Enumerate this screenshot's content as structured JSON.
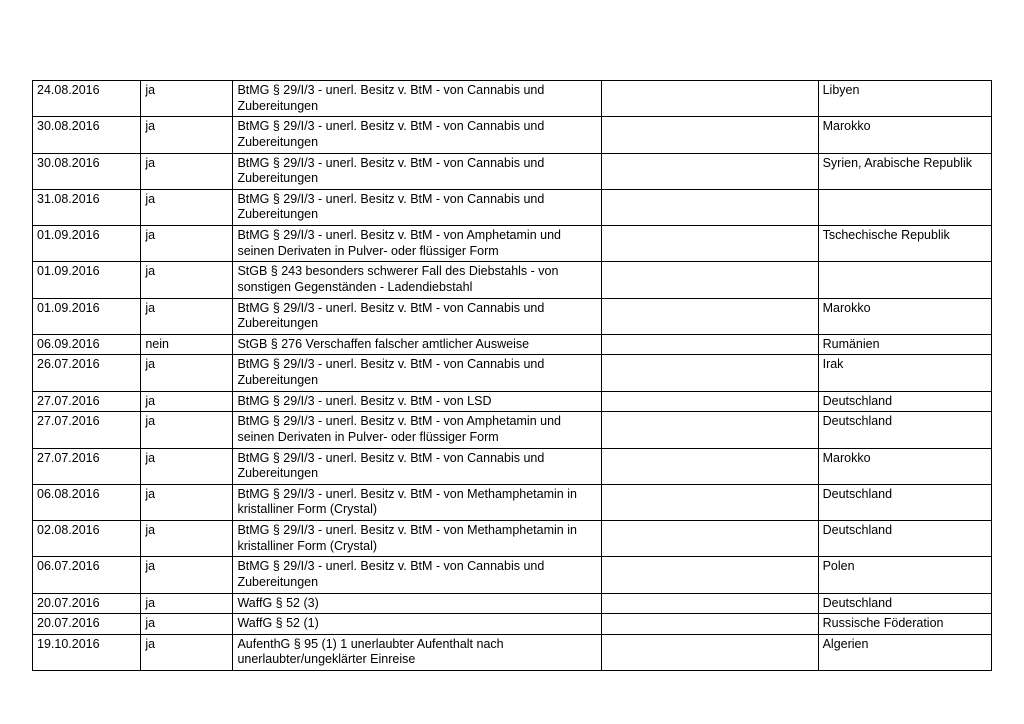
{
  "table": {
    "columns": [
      "date",
      "yesno",
      "law",
      "blank",
      "country"
    ],
    "rows": [
      {
        "date": "24.08.2016",
        "yesno": "ja",
        "law": "BtMG § 29/I/3 - unerl. Besitz v. BtM - von Cannabis und Zubereitungen",
        "blank": "",
        "country": "Libyen"
      },
      {
        "date": "30.08.2016",
        "yesno": "ja",
        "law": "BtMG § 29/I/3 - unerl. Besitz v. BtM - von Cannabis und Zubereitungen",
        "blank": "",
        "country": "Marokko"
      },
      {
        "date": "30.08.2016",
        "yesno": "ja",
        "law": "BtMG § 29/I/3 - unerl. Besitz v. BtM - von Cannabis und Zubereitungen",
        "blank": "",
        "country": "Syrien, Arabische Republik"
      },
      {
        "date": "31.08.2016",
        "yesno": "ja",
        "law": "BtMG § 29/I/3 - unerl. Besitz v. BtM - von Cannabis und Zubereitungen",
        "blank": "",
        "country": ""
      },
      {
        "date": "01.09.2016",
        "yesno": "ja",
        "law": "BtMG § 29/I/3 - unerl. Besitz v. BtM - von Amphetamin und seinen Derivaten in Pulver- oder flüssiger Form",
        "blank": "",
        "country": "Tschechische Republik"
      },
      {
        "date": "01.09.2016",
        "yesno": "ja",
        "law": "StGB § 243 besonders schwerer Fall des Diebstahls - von sonstigen Gegenständen - Ladendiebstahl",
        "blank": "",
        "country": ""
      },
      {
        "date": "01.09.2016",
        "yesno": "ja",
        "law": "BtMG § 29/I/3 - unerl. Besitz v. BtM - von Cannabis und Zubereitungen",
        "blank": "",
        "country": "Marokko"
      },
      {
        "date": "06.09.2016",
        "yesno": "nein",
        "law": "StGB § 276 Verschaffen falscher amtlicher Ausweise",
        "blank": "",
        "country": "Rumänien"
      },
      {
        "date": "26.07.2016",
        "yesno": "ja",
        "law": "BtMG § 29/I/3 - unerl. Besitz v. BtM - von Cannabis und Zubereitungen",
        "blank": "",
        "country": "Irak"
      },
      {
        "date": "27.07.2016",
        "yesno": "ja",
        "law": "BtMG § 29/I/3 - unerl. Besitz v. BtM - von LSD",
        "blank": "",
        "country": "Deutschland"
      },
      {
        "date": "27.07.2016",
        "yesno": "ja",
        "law": "BtMG § 29/I/3 - unerl. Besitz v. BtM - von Amphetamin und seinen Derivaten in Pulver- oder flüssiger Form",
        "blank": "",
        "country": "Deutschland"
      },
      {
        "date": "27.07.2016",
        "yesno": "ja",
        "law": "BtMG § 29/I/3 - unerl. Besitz v. BtM - von Cannabis und Zubereitungen",
        "blank": "",
        "country": "Marokko"
      },
      {
        "date": "06.08.2016",
        "yesno": "ja",
        "law": "BtMG § 29/I/3 - unerl. Besitz v. BtM - von Methamphetamin in kristalliner Form (Crystal)",
        "blank": "",
        "country": "Deutschland"
      },
      {
        "date": "02.08.2016",
        "yesno": "ja",
        "law": "BtMG § 29/I/3 - unerl. Besitz v. BtM - von Methamphetamin in kristalliner Form (Crystal)",
        "blank": "",
        "country": "Deutschland"
      },
      {
        "date": "06.07.2016",
        "yesno": "ja",
        "law": "BtMG § 29/I/3 - unerl. Besitz v. BtM - von Cannabis und Zubereitungen",
        "blank": "",
        "country": "Polen"
      },
      {
        "date": "20.07.2016",
        "yesno": "ja",
        "law": "WaffG § 52 (3)",
        "blank": "",
        "country": "Deutschland"
      },
      {
        "date": "20.07.2016",
        "yesno": "ja",
        "law": "WaffG § 52 (1)",
        "blank": "",
        "country": "Russische Föderation"
      },
      {
        "date": "19.10.2016",
        "yesno": "ja",
        "law": "AufenthG § 95 (1) 1 unerlaubter Aufenthalt nach unerlaubter/ungeklärter Einreise",
        "blank": "",
        "country": "Algerien"
      }
    ]
  }
}
